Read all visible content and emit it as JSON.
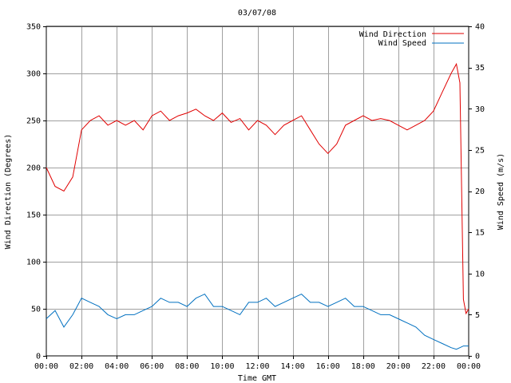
{
  "chart_data": {
    "type": "line",
    "title": "03/07/08",
    "xlabel": "Time GMT",
    "ylabel_left": "Wind Direction (Degrees)",
    "ylabel_right": "Wind Speed (m/s)",
    "x_ticks": [
      "00:00",
      "02:00",
      "04:00",
      "06:00",
      "08:00",
      "10:00",
      "12:00",
      "14:00",
      "16:00",
      "18:00",
      "20:00",
      "22:00",
      "00:00"
    ],
    "xlim_hours": [
      0,
      24
    ],
    "ylim_left": [
      0,
      350
    ],
    "yticks_left": [
      "0",
      "50",
      "100",
      "150",
      "200",
      "250",
      "300",
      "350"
    ],
    "ylim_right": [
      0,
      40
    ],
    "yticks_right": [
      "0",
      "5",
      "10",
      "15",
      "20",
      "25",
      "30",
      "35",
      "40"
    ],
    "grid": true,
    "legend_position": "top-right",
    "series": [
      {
        "name": "Wind Direction",
        "axis": "left",
        "color": "#e00000",
        "x_hours": [
          0,
          0.5,
          1,
          1.5,
          2,
          2.5,
          3,
          3.5,
          4,
          4.5,
          5,
          5.5,
          6,
          6.5,
          7,
          7.5,
          8,
          8.5,
          9,
          9.5,
          10,
          10.5,
          11,
          11.5,
          12,
          12.5,
          13,
          13.5,
          14,
          14.5,
          15,
          15.5,
          16,
          16.5,
          17,
          17.5,
          18,
          18.5,
          19,
          19.5,
          20,
          20.5,
          21,
          21.5,
          22,
          22.5,
          23,
          23.3,
          23.5,
          23.7,
          23.85,
          24
        ],
        "values": [
          200,
          180,
          175,
          190,
          240,
          250,
          255,
          245,
          250,
          245,
          250,
          240,
          255,
          260,
          250,
          255,
          258,
          262,
          255,
          250,
          258,
          248,
          252,
          240,
          250,
          245,
          235,
          245,
          250,
          255,
          240,
          225,
          215,
          225,
          245,
          250,
          255,
          250,
          252,
          250,
          245,
          240,
          245,
          250,
          260,
          280,
          300,
          310,
          290,
          60,
          45,
          50
        ]
      },
      {
        "name": "Wind Speed",
        "axis": "right",
        "color": "#0070c0",
        "x_hours": [
          0,
          0.5,
          1,
          1.5,
          2,
          2.5,
          3,
          3.5,
          4,
          4.5,
          5,
          5.5,
          6,
          6.5,
          7,
          7.5,
          8,
          8.5,
          9,
          9.5,
          10,
          10.5,
          11,
          11.5,
          12,
          12.5,
          13,
          13.5,
          14,
          14.5,
          15,
          15.5,
          16,
          16.5,
          17,
          17.5,
          18,
          18.5,
          19,
          19.5,
          20,
          20.5,
          21,
          21.5,
          22,
          22.5,
          23,
          23.3,
          23.5,
          23.7,
          24
        ],
        "values": [
          4.5,
          5.5,
          3.5,
          5,
          7,
          6.5,
          6,
          5,
          4.5,
          5,
          5,
          5.5,
          6,
          7,
          6.5,
          6.5,
          6,
          7,
          7.5,
          6,
          6,
          5.5,
          5,
          6.5,
          6.5,
          7,
          6,
          6.5,
          7,
          7.5,
          6.5,
          6.5,
          6,
          6.5,
          7,
          6,
          6,
          5.5,
          5,
          5,
          4.5,
          4,
          3.5,
          2.5,
          2,
          1.5,
          1,
          0.8,
          1,
          1.2,
          1.2
        ]
      }
    ]
  }
}
